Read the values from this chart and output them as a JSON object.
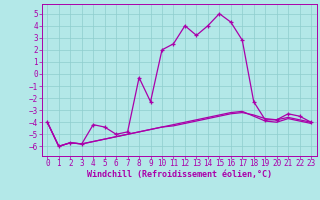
{
  "xlabel": "Windchill (Refroidissement éolien,°C)",
  "x": [
    0,
    1,
    2,
    3,
    4,
    5,
    6,
    7,
    8,
    9,
    10,
    11,
    12,
    13,
    14,
    15,
    16,
    17,
    18,
    19,
    20,
    21,
    22,
    23
  ],
  "y_main": [
    -4.0,
    -6.0,
    -5.7,
    -5.8,
    -4.2,
    -4.4,
    -5.0,
    -4.8,
    -0.3,
    -2.3,
    2.0,
    2.5,
    4.0,
    3.2,
    4.0,
    5.0,
    4.3,
    2.8,
    -2.3,
    -3.8,
    -3.8,
    -3.3,
    -3.5,
    -4.0
  ],
  "y_line2": [
    -4.0,
    -6.0,
    -5.7,
    -5.8,
    -5.6,
    -5.4,
    -5.2,
    -5.0,
    -4.8,
    -4.6,
    -4.4,
    -4.3,
    -4.1,
    -3.9,
    -3.7,
    -3.5,
    -3.3,
    -3.2,
    -3.4,
    -3.7,
    -3.8,
    -3.6,
    -3.8,
    -4.0
  ],
  "y_line3": [
    -4.0,
    -6.0,
    -5.7,
    -5.8,
    -5.6,
    -5.4,
    -5.2,
    -5.0,
    -4.8,
    -4.6,
    -4.4,
    -4.2,
    -4.0,
    -3.8,
    -3.6,
    -3.4,
    -3.2,
    -3.1,
    -3.5,
    -3.9,
    -4.0,
    -3.7,
    -3.9,
    -4.1
  ],
  "line_color": "#aa00aa",
  "bg_color": "#b3e8e8",
  "grid_color": "#8ecece",
  "ylim": [
    -6.8,
    5.8
  ],
  "xlim": [
    -0.5,
    23.5
  ],
  "yticks": [
    -6,
    -5,
    -4,
    -3,
    -2,
    -1,
    0,
    1,
    2,
    3,
    4,
    5
  ],
  "xticks": [
    0,
    1,
    2,
    3,
    4,
    5,
    6,
    7,
    8,
    9,
    10,
    11,
    12,
    13,
    14,
    15,
    16,
    17,
    18,
    19,
    20,
    21,
    22,
    23
  ],
  "tick_fontsize": 5.5,
  "xlabel_fontsize": 6.0
}
